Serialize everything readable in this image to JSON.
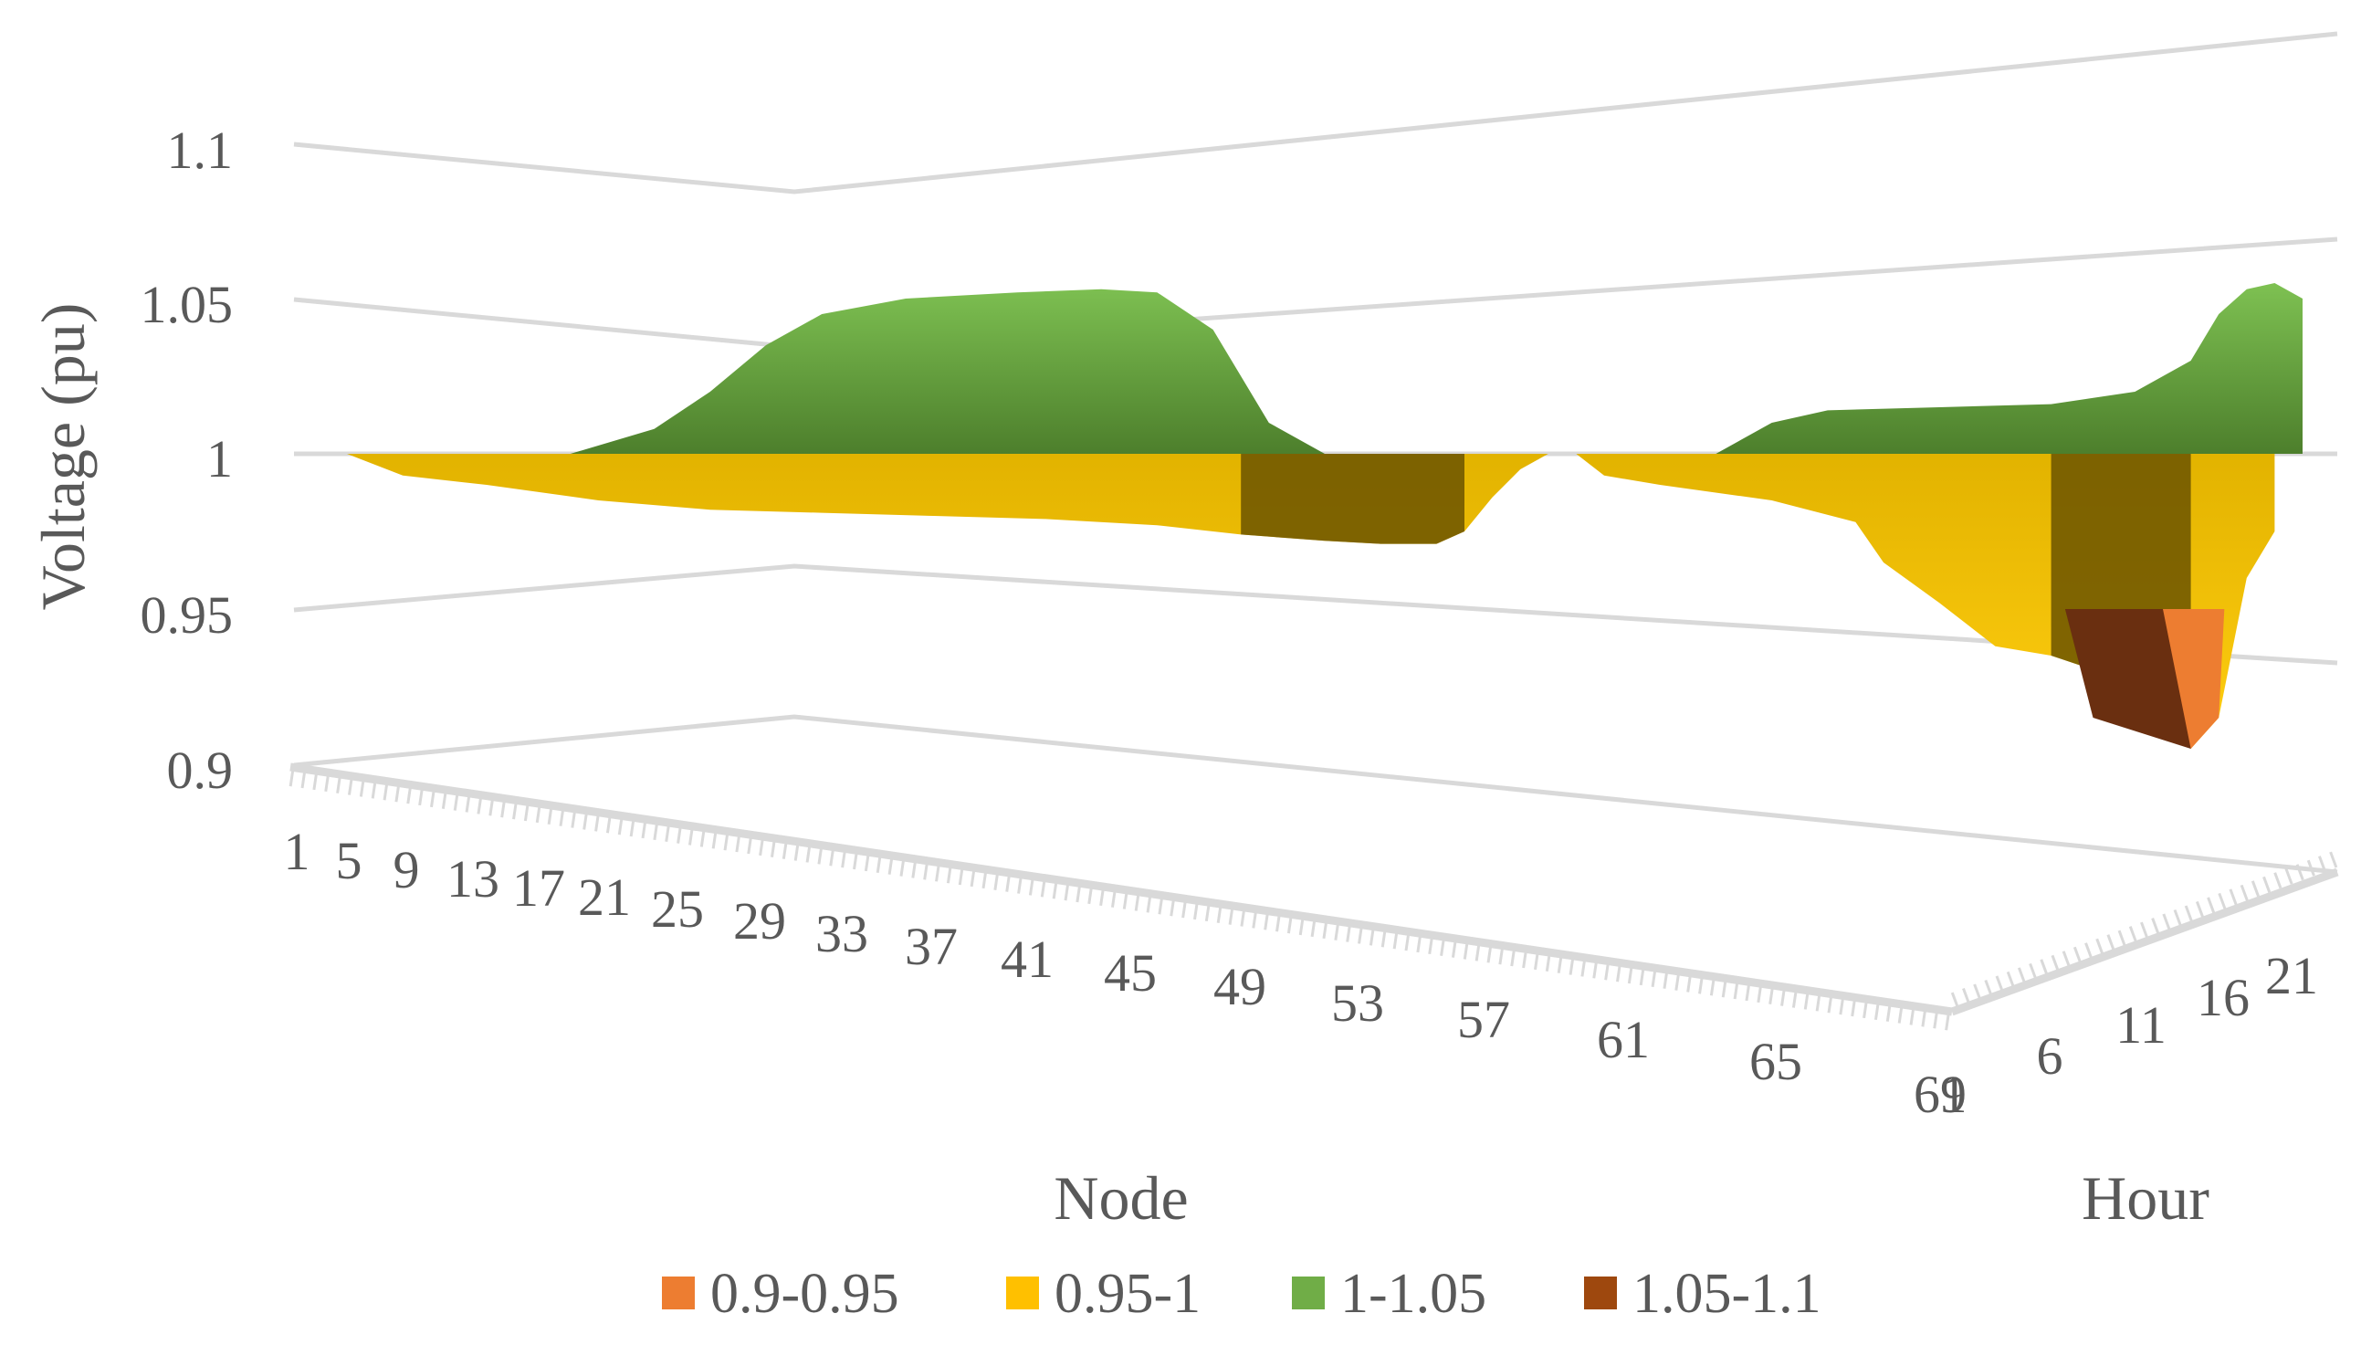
{
  "chart_data": {
    "type": "surface",
    "ylabel": "Voltage (pu)",
    "xlabel": "Node",
    "zlabel": "Hour",
    "ylim": [
      0.9,
      1.1
    ],
    "y_ticks": [
      "0.9",
      "0.95",
      "1",
      "1.05",
      "1.1"
    ],
    "x_ticks": [
      "1",
      "5",
      "9",
      "13",
      "17",
      "21",
      "25",
      "29",
      "33",
      "37",
      "41",
      "45",
      "49",
      "53",
      "57",
      "61",
      "65",
      "69"
    ],
    "z_ticks": [
      "1",
      "6",
      "11",
      "16",
      "21"
    ],
    "legend": [
      {
        "name": "0.9-0.95",
        "color": "#ED7D31"
      },
      {
        "name": "0.95-1",
        "color": "#FFC000"
      },
      {
        "name": "1-1.05",
        "color": "#70AD47"
      },
      {
        "name": "1.05-1.1",
        "color": "#9E480E"
      }
    ],
    "legend_position": "bottom",
    "gridlines": true,
    "front_profile_pu": [
      [
        1,
        1.0
      ],
      [
        3,
        0.993
      ],
      [
        6,
        0.99
      ],
      [
        10,
        0.985
      ],
      [
        14,
        0.982
      ],
      [
        18,
        0.981
      ],
      [
        22,
        0.98
      ],
      [
        26,
        0.979
      ],
      [
        30,
        0.977
      ],
      [
        33,
        0.974
      ],
      [
        36,
        0.972
      ],
      [
        38,
        0.971
      ],
      [
        40,
        0.971
      ],
      [
        41,
        0.975
      ],
      [
        42,
        0.986
      ],
      [
        43,
        0.995
      ],
      [
        44,
        1.0
      ],
      [
        45,
        1.0
      ],
      [
        46,
        0.993
      ],
      [
        48,
        0.99
      ],
      [
        52,
        0.985
      ],
      [
        55,
        0.978
      ],
      [
        56,
        0.965
      ],
      [
        58,
        0.952
      ],
      [
        60,
        0.938
      ],
      [
        62,
        0.935
      ],
      [
        63,
        0.932
      ],
      [
        64,
        0.93
      ],
      [
        65,
        0.925
      ],
      [
        66,
        0.918
      ],
      [
        67,
        0.905
      ],
      [
        68,
        0.915
      ],
      [
        69,
        0.96
      ],
      [
        70,
        0.975
      ]
    ],
    "back_profile_pu": [
      [
        9,
        1.0
      ],
      [
        12,
        1.008
      ],
      [
        14,
        1.02
      ],
      [
        16,
        1.035
      ],
      [
        18,
        1.045
      ],
      [
        21,
        1.05
      ],
      [
        25,
        1.052
      ],
      [
        28,
        1.053
      ],
      [
        30,
        1.052
      ],
      [
        32,
        1.04
      ],
      [
        34,
        1.01
      ],
      [
        36,
        1.0
      ],
      [
        50,
        1.0
      ],
      [
        52,
        1.01
      ],
      [
        54,
        1.014
      ],
      [
        58,
        1.015
      ],
      [
        62,
        1.016
      ],
      [
        65,
        1.02
      ],
      [
        67,
        1.03
      ],
      [
        68,
        1.045
      ],
      [
        69,
        1.053
      ],
      [
        70,
        1.055
      ],
      [
        71,
        1.05
      ]
    ]
  }
}
